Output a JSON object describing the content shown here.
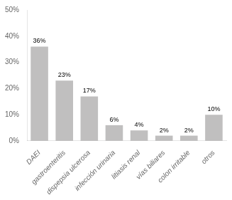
{
  "chart_data": {
    "type": "bar",
    "categories": [
      "DAEI",
      "gastroenteritis",
      "dispepsia ulcerosa",
      "infección urinaria",
      "litiasis renal",
      "vías biliares",
      "colon irritable",
      "otros"
    ],
    "values": [
      36,
      23,
      17,
      6,
      4,
      2,
      2,
      10
    ],
    "value_labels": [
      "36%",
      "23%",
      "17%",
      "6%",
      "4%",
      "2%",
      "2%",
      "10%"
    ],
    "data_labels": true,
    "color": "#c0bfbf",
    "ylim": [
      0,
      50
    ],
    "yticks": [
      {
        "value": 0,
        "label": "0%"
      },
      {
        "value": 10,
        "label": "10%"
      },
      {
        "value": 20,
        "label": "20%"
      },
      {
        "value": 30,
        "label": "30%"
      },
      {
        "value": 40,
        "label": "40%"
      },
      {
        "value": 50,
        "label": "50%"
      }
    ],
    "grid": false
  }
}
